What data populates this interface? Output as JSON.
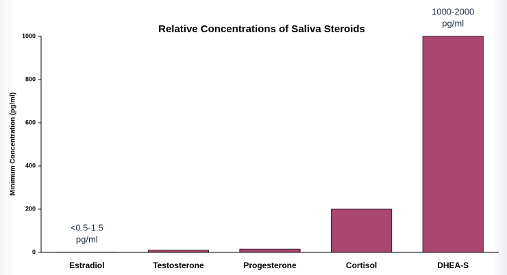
{
  "chart_data": {
    "type": "bar",
    "title": "Relative Concentrations of Saliva Steroids",
    "y_label": "Minimum Concentration (pg/ml)",
    "categories": [
      "Estradiol",
      "Testosterone",
      "Progesterone",
      "Cortisol",
      "DHEA-S"
    ],
    "values": [
      0.5,
      10,
      15,
      200,
      1000
    ],
    "color": "#ab4872",
    "ylim": [
      0,
      1000
    ],
    "yticks": [
      0,
      200,
      400,
      600,
      800,
      1000
    ],
    "annotations": [
      {
        "category": "Estradiol",
        "text": [
          "<0.5-1.5",
          "pg/ml"
        ]
      },
      {
        "category": "DHEA-S",
        "text": [
          "1000-2000",
          "pg/ml"
        ]
      }
    ]
  }
}
